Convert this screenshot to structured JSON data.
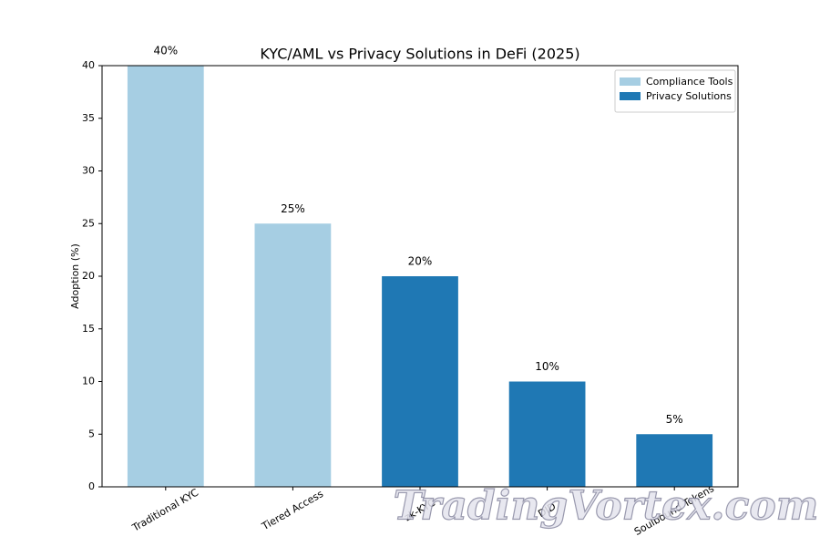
{
  "chart_data": {
    "type": "bar",
    "title": "KYC/AML vs Privacy Solutions in DeFi (2025)",
    "ylabel": "Adoption (%)",
    "categories": [
      "Traditional KYC",
      "Tiered Access",
      "zk-KYC",
      "DID",
      "Soulbound Tokens"
    ],
    "series": [
      {
        "name": "Compliance Tools",
        "color": "#a6cee3",
        "values": [
          40,
          25,
          null,
          null,
          null
        ],
        "value_labels": [
          "40%",
          "25%",
          null,
          null,
          null
        ]
      },
      {
        "name": "Privacy Solutions",
        "color": "#1f78b4",
        "values": [
          null,
          null,
          20,
          10,
          5
        ],
        "value_labels": [
          null,
          null,
          "20%",
          "10%",
          "5%"
        ]
      }
    ],
    "ylim": [
      0,
      40
    ],
    "yticks": [
      0,
      5,
      10,
      15,
      20,
      25,
      30,
      35,
      40
    ],
    "grid": false,
    "legend": "upper right",
    "watermark": "TradingVortex.com"
  }
}
